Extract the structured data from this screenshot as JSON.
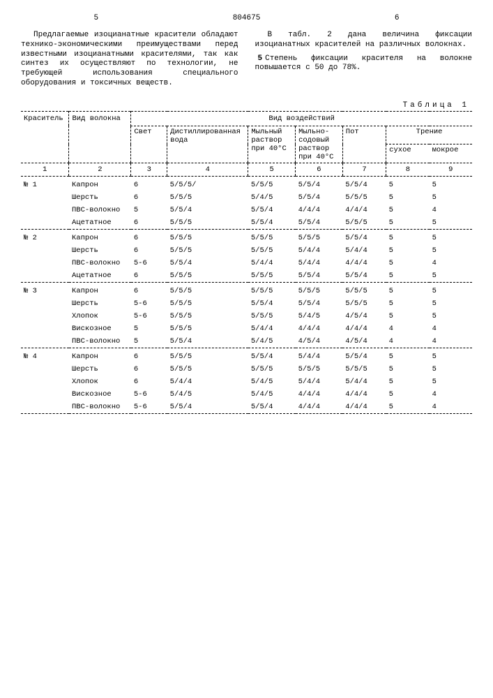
{
  "page": {
    "left_no": "5",
    "doc_no": "804675",
    "right_no": "6"
  },
  "text": {
    "left": "Предлагаемые изоцианатные красители обладают технико-экономическими преимуществами перед известными изоцианатными красителями, так как синтез их осуществляют по технологии, не требующей использования специального оборудования и токсичных веществ.",
    "right_p1": "В табл. 2 дана величина фиксации изоцианатных красителей на различных волокнах.",
    "right_p2": "Степень фиксации красителя на волокне повышается с 50 до 78%.",
    "line_marker": "5"
  },
  "table": {
    "label": "Таблица 1",
    "head": {
      "dye": "Краситель",
      "fiber": "Вид волокна",
      "effects": "Вид воздействий",
      "light": "Свет",
      "dist": "Дистиллированная вода",
      "soap": "Мыльный раствор при 40°C",
      "soapSoda": "Мыльно-содовый раствор при 40°C",
      "sweat": "Пот",
      "friction": "Трение",
      "dry": "сухое",
      "wet": "мокрое"
    },
    "colnums": [
      "1",
      "2",
      "3",
      "4",
      "5",
      "6",
      "7",
      "8",
      "9"
    ],
    "groups": [
      {
        "dye": "№ 1",
        "rows": [
          {
            "f": "Капрон",
            "c": [
              "6",
              "5/5/5/",
              "5/5/5",
              "5/5/4",
              "5/5/4",
              "5",
              "5"
            ]
          },
          {
            "f": "Шерсть",
            "c": [
              "6",
              "5/5/5",
              "5/4/5",
              "5/5/4",
              "5/5/5",
              "5",
              "5"
            ]
          },
          {
            "f": "ПВС-волокно",
            "c": [
              "5",
              "5/5/4",
              "5/5/4",
              "4/4/4",
              "4/4/4",
              "5",
              "4"
            ]
          },
          {
            "f": "Ацетатное",
            "c": [
              "6",
              "5/5/5",
              "5/5/4",
              "5/5/4",
              "5/5/5",
              "5",
              "5"
            ]
          }
        ]
      },
      {
        "dye": "№ 2",
        "rows": [
          {
            "f": "Капрон",
            "c": [
              "6",
              "5/5/5",
              "5/5/5",
              "5/5/5",
              "5/5/4",
              "5",
              "5"
            ]
          },
          {
            "f": "Шерсть",
            "c": [
              "6",
              "5/5/5",
              "5/5/5",
              "5/4/4",
              "5/4/4",
              "5",
              "5"
            ]
          },
          {
            "f": "ПВС-волокно",
            "c": [
              "5-6",
              "5/5/4",
              "5/4/4",
              "5/4/4",
              "4/4/4",
              "5",
              "4"
            ]
          },
          {
            "f": "Ацетатное",
            "c": [
              "6",
              "5/5/5",
              "5/5/5",
              "5/5/4",
              "5/5/4",
              "5",
              "5"
            ]
          }
        ]
      },
      {
        "dye": "№ 3",
        "rows": [
          {
            "f": "Капрон",
            "c": [
              "6",
              "5/5/5",
              "5/5/5",
              "5/5/5",
              "5/5/5",
              "5",
              "5"
            ]
          },
          {
            "f": "Шерсть",
            "c": [
              "5-6",
              "5/5/5",
              "5/5/4",
              "5/5/4",
              "5/5/5",
              "5",
              "5"
            ]
          },
          {
            "f": "Хлопок",
            "c": [
              "5-6",
              "5/5/5",
              "5/5/5",
              "5/4/5",
              "4/5/4",
              "5",
              "5"
            ]
          },
          {
            "f": "Вискозное",
            "c": [
              "5",
              "5/5/5",
              "5/4/4",
              "4/4/4",
              "4/4/4",
              "4",
              "4"
            ]
          },
          {
            "f": "ПВС-волокно",
            "c": [
              "5",
              "5/5/4",
              "5/4/5",
              "4/5/4",
              "4/5/4",
              "4",
              "4"
            ]
          }
        ]
      },
      {
        "dye": "№ 4",
        "rows": [
          {
            "f": "Капрон",
            "c": [
              "6",
              "5/5/5",
              "5/5/4",
              "5/4/4",
              "5/5/4",
              "5",
              "5"
            ]
          },
          {
            "f": "Шерсть",
            "c": [
              "6",
              "5/5/5",
              "5/5/5",
              "5/5/5",
              "5/5/5",
              "5",
              "5"
            ]
          },
          {
            "f": "Хлопок",
            "c": [
              "6",
              "5/4/4",
              "5/4/5",
              "5/4/4",
              "5/4/4",
              "5",
              "5"
            ]
          },
          {
            "f": "Вискозное",
            "c": [
              "5-6",
              "5/4/5",
              "5/4/5",
              "4/4/4",
              "4/4/4",
              "5",
              "4"
            ]
          },
          {
            "f": "ПВС-волокно",
            "c": [
              "5-6",
              "5/5/4",
              "5/5/4",
              "4/4/4",
              "4/4/4",
              "5",
              "4"
            ]
          }
        ]
      }
    ]
  }
}
